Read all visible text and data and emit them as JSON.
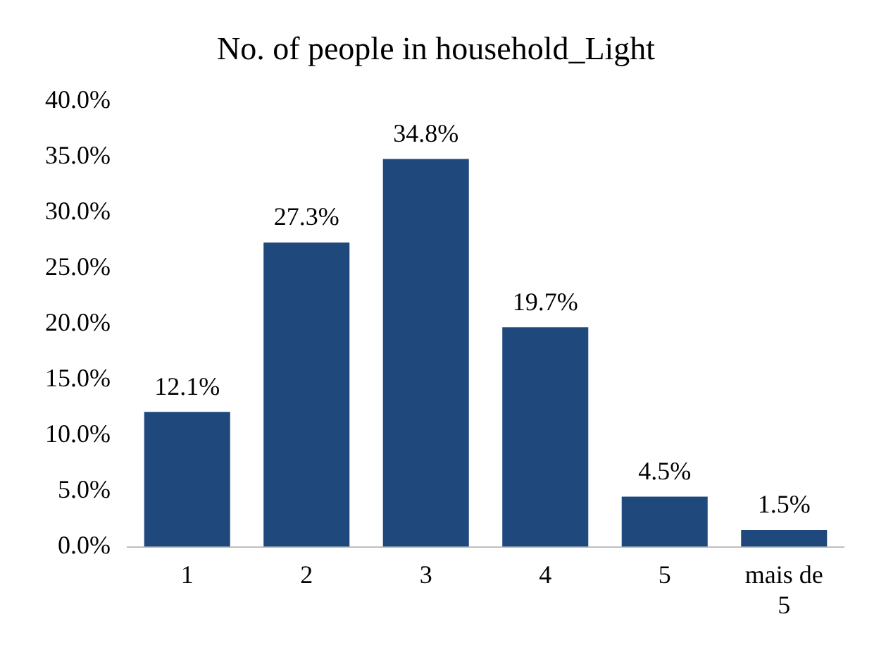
{
  "chart_data": {
    "type": "bar",
    "title": "No. of people in household_Light",
    "categories": [
      "1",
      "2",
      "3",
      "4",
      "5",
      "mais de 5"
    ],
    "values": [
      12.1,
      27.3,
      34.8,
      19.7,
      4.5,
      1.5
    ],
    "value_labels": [
      "12.1%",
      "27.3%",
      "34.8%",
      "19.7%",
      "4.5%",
      "1.5%"
    ],
    "color": "#1f497d",
    "ylim": [
      0,
      40
    ],
    "yticks": [
      {
        "value": 0,
        "label": "0.0%"
      },
      {
        "value": 5,
        "label": "5.0%"
      },
      {
        "value": 10,
        "label": "10.0%"
      },
      {
        "value": 15,
        "label": "15.0%"
      },
      {
        "value": 20,
        "label": "20.0%"
      },
      {
        "value": 25,
        "label": "25.0%"
      },
      {
        "value": 30,
        "label": "30.0%"
      },
      {
        "value": 35,
        "label": "35.0%"
      },
      {
        "value": 40,
        "label": "40.0%"
      }
    ],
    "grid": false,
    "legend": false
  }
}
